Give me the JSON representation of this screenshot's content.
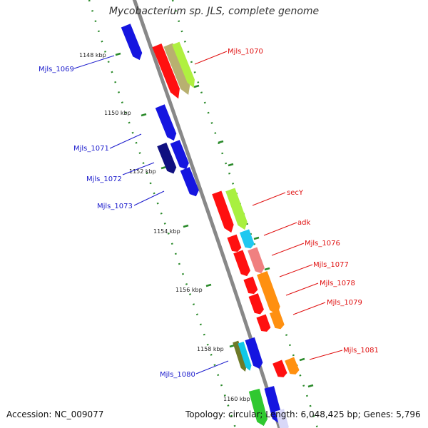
{
  "title": "Mycobacterium sp. JLS, complete genome",
  "accession_text": "Accession: NC_009077",
  "summary_text": "Topology: circular; Length: 6,048,425 bp; Genes: 5,796",
  "colors": {
    "backbone": "#888888",
    "tick": "#2a8a2a",
    "left_label": "#1a1acc",
    "right_label": "#e01010"
  },
  "scale_labels": [
    "1148 kbp",
    "1150 kbp",
    "1152 kbp",
    "1154 kbp",
    "1156 kbp",
    "1158 kbp",
    "1160 kbp"
  ],
  "left_genes": [
    "Mjls_1069",
    "Mjls_1071",
    "Mjls_1072",
    "Mjls_1073",
    "Mjls_1080"
  ],
  "right_genes": [
    "Mjls_1070",
    "secY",
    "adk",
    "Mjls_1076",
    "Mjls_1077",
    "Mjls_1078",
    "Mjls_1079",
    "Mjls_1081"
  ],
  "feature_colors": [
    "blue",
    "navy",
    "red",
    "olive-green",
    "lime",
    "cyan",
    "salmon",
    "orange",
    "green",
    "lavender"
  ]
}
